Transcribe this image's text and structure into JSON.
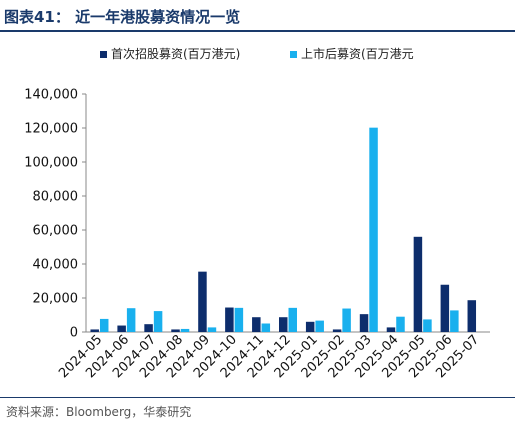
{
  "header": {
    "title": "图表41：  近一年港股募资情况一览"
  },
  "footer": {
    "source": "资料来源：Bloomberg，华泰研究"
  },
  "colors": {
    "series_ipo": "#0d2d6c",
    "series_post": "#19b0ee",
    "header": "#1a3a6b"
  },
  "chart_data": {
    "type": "bar",
    "title": "",
    "xlabel": "",
    "ylabel": "",
    "categories": [
      "2024-05",
      "2024-06",
      "2024-07",
      "2024-08",
      "2024-09",
      "2024-10",
      "2024-11",
      "2024-12",
      "2025-01",
      "2025-02",
      "2025-03",
      "2025-04",
      "2025-05",
      "2025-06",
      "2025-07"
    ],
    "series": [
      {
        "name": "首次招股募资(百万港元)",
        "color": "#0d2d6c",
        "values": [
          1500,
          3800,
          4600,
          1500,
          35500,
          14400,
          8700,
          8700,
          6000,
          1500,
          10500,
          2700,
          56000,
          27800,
          18700
        ]
      },
      {
        "name": "上市后募资(百万港元",
        "color": "#19b0ee",
        "values": [
          7700,
          14000,
          12300,
          1800,
          2700,
          14200,
          5000,
          14200,
          6700,
          13800,
          120200,
          9000,
          7400,
          12700,
          null
        ]
      }
    ],
    "ylim": [
      0,
      140000
    ],
    "yticks": [
      0,
      20000,
      40000,
      60000,
      80000,
      100000,
      120000,
      140000
    ],
    "ytick_labels": [
      "0",
      "20,000",
      "40,000",
      "60,000",
      "80,000",
      "100,000",
      "120,000",
      "140,000"
    ],
    "legend": "top",
    "grid": false
  }
}
